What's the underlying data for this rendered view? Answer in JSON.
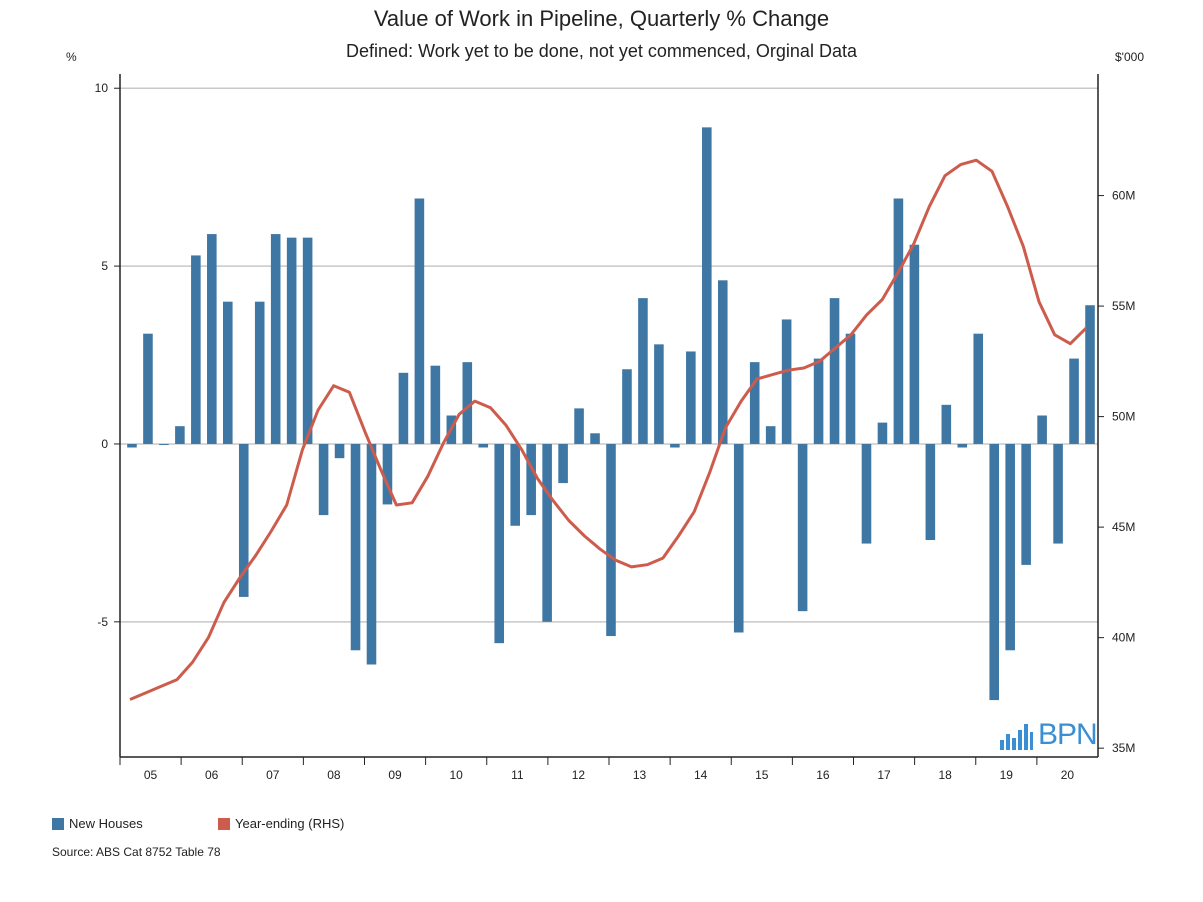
{
  "title": "Value of Work in Pipeline, Quarterly % Change",
  "subtitle": "Defined: Work yet to be done, not yet commenced, Orginal Data",
  "left_axis_unit": "%",
  "right_axis_unit": "$'000",
  "source": "Source: ABS Cat 8752 Table 78",
  "logo_text": "BPN",
  "colors": {
    "bar": "#3f77a4",
    "line": "#cd5c4c",
    "grid": "#c8c8c8",
    "axis": "#222222",
    "logo": "#3a8fd4"
  },
  "legend": [
    {
      "label": "New Houses",
      "color": "#3f77a4"
    },
    {
      "label": "Year-ending (RHS)",
      "color": "#cd5c4c"
    }
  ],
  "chart_data": {
    "type": "bar",
    "title": "Value of Work in Pipeline, Quarterly % Change",
    "subtitle": "Defined: Work yet to be done, not yet commenced, Orginal Data",
    "x_tick_labels": [
      "05",
      "06",
      "07",
      "08",
      "09",
      "10",
      "11",
      "12",
      "13",
      "14",
      "15",
      "16",
      "17",
      "18",
      "19",
      "20"
    ],
    "left_axis": {
      "label": "%",
      "range": [
        -8.8,
        10.4
      ],
      "ticks": [
        -5,
        0,
        5,
        10
      ]
    },
    "right_axis": {
      "label": "$'000",
      "range": [
        34.6,
        65.5
      ],
      "ticks": [
        "35M",
        "40M",
        "45M",
        "50M",
        "55M",
        "60M"
      ],
      "tick_values": [
        35,
        40,
        45,
        50,
        55,
        60
      ]
    },
    "grid": true,
    "legend_position": "bottom-left",
    "series": [
      {
        "name": "New Houses",
        "type": "bar",
        "axis": "left",
        "values": [
          -0.1,
          3.1,
          0.0,
          0.5,
          5.3,
          5.9,
          4.0,
          -4.3,
          4.0,
          5.9,
          5.8,
          5.8,
          -2.0,
          -0.4,
          -5.8,
          -6.2,
          -1.7,
          2.0,
          6.9,
          2.2,
          0.8,
          2.3,
          -0.1,
          -5.6,
          -2.3,
          -2.0,
          -5.0,
          -1.1,
          1.0,
          0.3,
          -5.4,
          2.1,
          4.1,
          2.8,
          -0.1,
          2.6,
          8.9,
          4.6,
          -5.3,
          2.3,
          0.5,
          3.5,
          -4.7,
          2.4,
          4.1,
          3.1,
          -2.8,
          0.6,
          6.9,
          5.6,
          -2.7,
          1.1,
          -0.1,
          3.1,
          -7.2,
          -5.8,
          -3.4,
          0.8,
          -2.8,
          2.4,
          3.9
        ]
      },
      {
        "name": "Year-ending (RHS)",
        "type": "line",
        "axis": "right",
        "values": [
          37.2,
          37.5,
          37.8,
          38.1,
          38.9,
          40.0,
          41.6,
          42.7,
          43.7,
          44.8,
          46.0,
          48.5,
          50.3,
          51.4,
          51.1,
          49.3,
          47.6,
          46.0,
          46.1,
          47.3,
          48.8,
          50.1,
          50.7,
          50.4,
          49.6,
          48.5,
          47.2,
          46.2,
          45.3,
          44.6,
          44.0,
          43.5,
          43.2,
          43.3,
          43.6,
          44.6,
          45.7,
          47.5,
          49.5,
          50.7,
          51.7,
          51.9,
          52.1,
          52.2,
          52.5,
          53.1,
          53.7,
          54.6,
          55.3,
          56.5,
          57.8,
          59.5,
          60.9,
          61.4,
          61.6,
          61.1,
          59.5,
          57.7,
          55.2,
          53.7,
          53.3,
          54.0
        ]
      }
    ]
  }
}
